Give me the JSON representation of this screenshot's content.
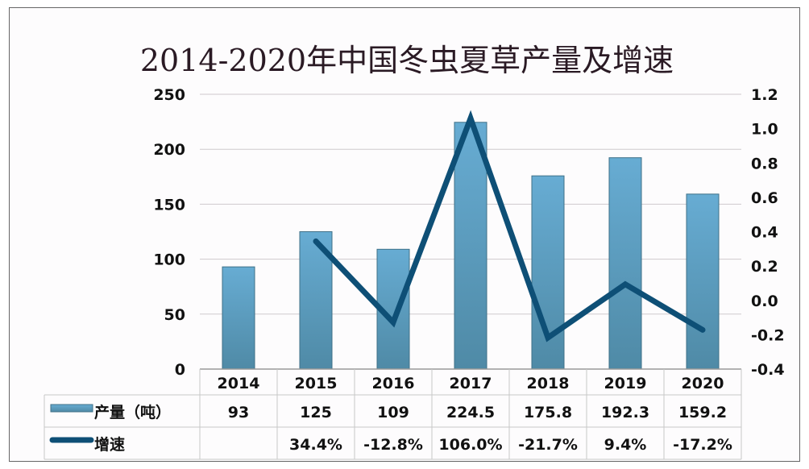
{
  "chart_data": {
    "type": "bar+line",
    "title": "2014-2020年中国冬虫夏草产量及增速",
    "categories": [
      "2014",
      "2015",
      "2016",
      "2017",
      "2018",
      "2019",
      "2020"
    ],
    "series": [
      {
        "name": "产量（吨）",
        "type": "bar",
        "axis": "left",
        "values": [
          93,
          125,
          109,
          224.5,
          175.8,
          192.3,
          159.2
        ],
        "labels": [
          "93",
          "125",
          "109",
          "224.5",
          "175.8",
          "192.3",
          "159.2"
        ],
        "color": "#5b9fc6"
      },
      {
        "name": "增速",
        "type": "line",
        "axis": "right",
        "values": [
          null,
          0.344,
          -0.128,
          1.06,
          -0.217,
          0.094,
          -0.172
        ],
        "labels": [
          "",
          "34.4%",
          "-12.8%",
          "106.0%",
          "-21.7%",
          "9.4%",
          "-17.2%"
        ],
        "color": "#0e4f76"
      }
    ],
    "left_axis": {
      "ylim": [
        0,
        250
      ],
      "ticks": [
        "0",
        "50",
        "100",
        "150",
        "200",
        "250"
      ]
    },
    "right_axis": {
      "ylim": [
        -0.4,
        1.2
      ],
      "ticks": [
        "-0.4",
        "-0.2",
        "0.0",
        "0.2",
        "0.4",
        "0.6",
        "0.8",
        "1.0",
        "1.2"
      ]
    },
    "grid": true,
    "legend": "data-table"
  }
}
